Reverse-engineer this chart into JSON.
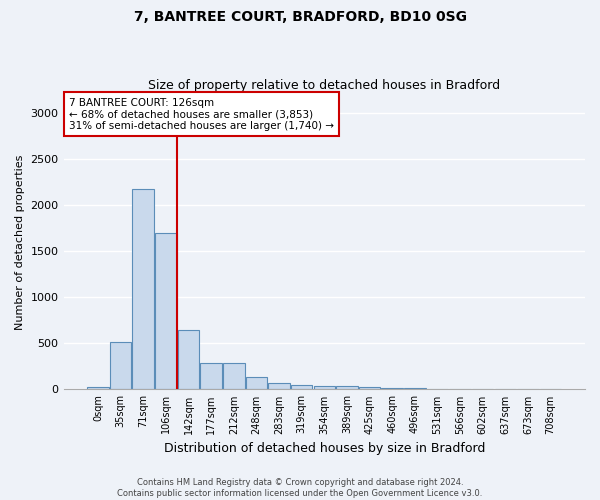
{
  "title1": "7, BANTREE COURT, BRADFORD, BD10 0SG",
  "title2": "Size of property relative to detached houses in Bradford",
  "xlabel": "Distribution of detached houses by size in Bradford",
  "ylabel": "Number of detached properties",
  "bar_labels": [
    "0sqm",
    "35sqm",
    "71sqm",
    "106sqm",
    "142sqm",
    "177sqm",
    "212sqm",
    "248sqm",
    "283sqm",
    "319sqm",
    "354sqm",
    "389sqm",
    "425sqm",
    "460sqm",
    "496sqm",
    "531sqm",
    "566sqm",
    "602sqm",
    "637sqm",
    "673sqm",
    "708sqm"
  ],
  "bar_values": [
    30,
    520,
    2180,
    1700,
    640,
    285,
    285,
    130,
    75,
    45,
    35,
    35,
    30,
    20,
    20,
    0,
    0,
    0,
    0,
    0,
    0
  ],
  "bar_color": "#c9d9ec",
  "bar_edge_color": "#5b8db8",
  "bg_color": "#eef2f8",
  "grid_color": "#ffffff",
  "annotation_box_text": "7 BANTREE COURT: 126sqm\n← 68% of detached houses are smaller (3,853)\n31% of semi-detached houses are larger (1,740) →",
  "annotation_box_color": "#cc0000",
  "property_line_x": 3.5,
  "property_line_color": "#cc0000",
  "ylim": [
    0,
    3200
  ],
  "yticks": [
    0,
    500,
    1000,
    1500,
    2000,
    2500,
    3000
  ],
  "footnote": "Contains HM Land Registry data © Crown copyright and database right 2024.\nContains public sector information licensed under the Open Government Licence v3.0."
}
